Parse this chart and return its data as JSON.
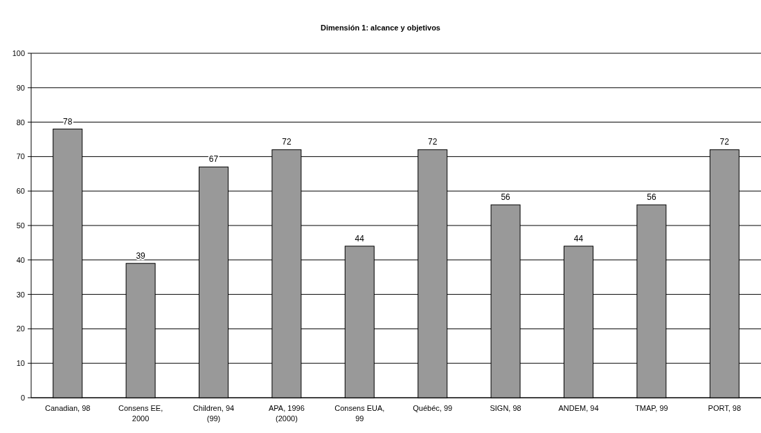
{
  "chart_data": {
    "type": "bar",
    "title": "Dimensión 1: alcance y objetivos",
    "categories": [
      "Canadian, 98",
      "Consens EE, 2000",
      "Children, 94 (99)",
      "APA, 1996 (2000)",
      "Consens EUA, 99",
      "Québéc, 99",
      "SIGN, 98",
      "ANDEM, 94",
      "TMAP, 99",
      "PORT, 98"
    ],
    "values": [
      78,
      39,
      67,
      72,
      44,
      72,
      56,
      44,
      56,
      72
    ],
    "color": "#999999",
    "ylim": [
      0,
      100
    ],
    "yticks": [
      0,
      10,
      20,
      30,
      40,
      50,
      60,
      70,
      80,
      90,
      100
    ],
    "grid": "y",
    "data_labels": true
  }
}
